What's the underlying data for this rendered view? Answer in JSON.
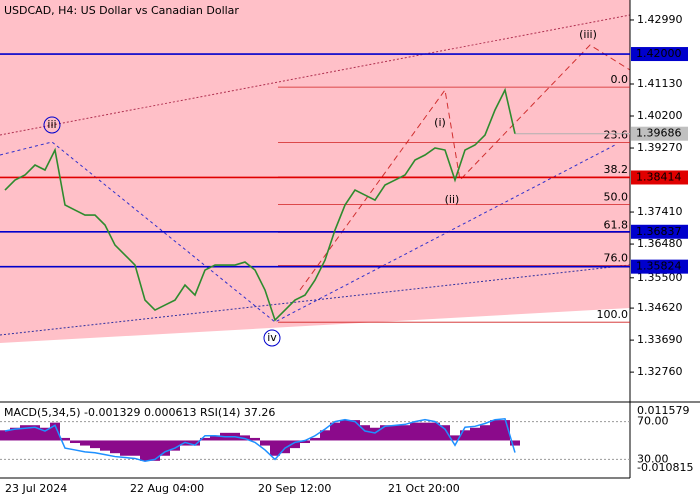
{
  "chart_data": {
    "type": "line",
    "title": "USDCAD, H4:  US Dollar vs Canadian Dollar",
    "x_labels": [
      "23 Jul 2024",
      "22 Aug 04:00",
      "20 Sep 12:00",
      "21 Oct 20:00"
    ],
    "ylim": [
      1.3195,
      1.4357
    ],
    "yticks": [
      {
        "value": 1.4299,
        "label": "1.42990"
      },
      {
        "value": 1.4113,
        "label": "1.41130"
      },
      {
        "value": 1.402,
        "label": "1.40200"
      },
      {
        "value": 1.3927,
        "label": "1.39270"
      },
      {
        "value": 1.3741,
        "label": "1.37410"
      },
      {
        "value": 1.3648,
        "label": "1.36480"
      },
      {
        "value": 1.355,
        "label": "1.35500"
      },
      {
        "value": 1.3462,
        "label": "1.34620"
      },
      {
        "value": 1.3369,
        "label": "1.33690"
      },
      {
        "value": 1.3276,
        "label": "1.32760"
      }
    ],
    "series": [
      {
        "name": "USDCAD",
        "color": "#2e8b2e",
        "values": [
          1.3805,
          1.3834,
          1.38486,
          1.38776,
          1.38631,
          1.39212,
          1.37614,
          1.37468,
          1.37323,
          1.37323,
          1.37033,
          1.36451,
          1.36161,
          1.3587,
          1.34853,
          1.34562,
          1.34708,
          1.34853,
          1.35289,
          1.34998,
          1.35725,
          1.3587,
          1.3587,
          1.3587,
          1.35957,
          1.35725,
          1.35144,
          1.34272,
          1.34562,
          1.34853,
          1.34998,
          1.35434,
          1.36015,
          1.36887,
          1.37614,
          1.3805,
          1.37904,
          1.37759,
          1.38195,
          1.3834,
          1.38486,
          1.38921,
          1.39067,
          1.3927,
          1.39212,
          1.3834,
          1.39212,
          1.39357,
          1.39648,
          1.40375,
          1.40956,
          1.39686
        ]
      }
    ],
    "current_price": {
      "value": 1.39686,
      "label": "1.39686"
    },
    "levels": [
      {
        "value": 1.42,
        "label": "1.42000",
        "color": "#0000cc"
      },
      {
        "value": 1.38414,
        "label": "1.38414",
        "color": "#e00000"
      },
      {
        "value": 1.36837,
        "label": "1.36837",
        "color": "#0000cc"
      },
      {
        "value": 1.35824,
        "label": "1.35824",
        "color": "#0000cc"
      }
    ],
    "fib_levels": [
      {
        "value": 1.4104,
        "label": "0.0"
      },
      {
        "value": 1.3943,
        "label": "23.6"
      },
      {
        "value": 1.3843,
        "label": "38.2"
      },
      {
        "value": 1.3763,
        "label": "50.0"
      },
      {
        "value": 1.3682,
        "label": "61.8"
      },
      {
        "value": 1.3586,
        "label": "76.0"
      },
      {
        "value": 1.3421,
        "label": "100.0"
      }
    ],
    "annotations": [
      {
        "text": "iii",
        "color": "#0000cc"
      },
      {
        "text": "iv",
        "color": "#0000cc"
      },
      {
        "text": "(i)",
        "color": "#c00000"
      },
      {
        "text": "(ii)",
        "color": "#c00000"
      },
      {
        "text": "(iii)",
        "color": "#c00000"
      }
    ],
    "indicator": {
      "title": "MACD(5,34,5) -0.001329 0.000613 RSI(14) 37.26",
      "macd_ylim": [
        -0.010815,
        0.011579
      ],
      "macd_ticks": [
        {
          "value": 0.011579,
          "label": "0.011579"
        },
        {
          "value": -0.010815,
          "label": "-0.010815"
        }
      ],
      "macd_color": "#8b0a8b",
      "macd_values": [
        0.004,
        0.005,
        0.006,
        0.006,
        0.005,
        0.007,
        0.001,
        -0.001,
        -0.002,
        -0.003,
        -0.004,
        -0.005,
        -0.006,
        -0.006,
        -0.008,
        -0.008,
        -0.006,
        -0.004,
        -0.002,
        -0.002,
        0.001,
        0.002,
        0.003,
        0.003,
        0.002,
        0.001,
        -0.002,
        -0.006,
        -0.005,
        -0.003,
        -0.001,
        0.001,
        0.004,
        0.007,
        0.008,
        0.008,
        0.006,
        0.005,
        0.006,
        0.006,
        0.006,
        0.007,
        0.007,
        0.007,
        0.006,
        0.002,
        0.004,
        0.005,
        0.006,
        0.008,
        0.008,
        -0.002
      ],
      "rsi_ylim": [
        20.9,
        81.2
      ],
      "rsi_ticks": [
        {
          "value": 70,
          "label": "70.00"
        },
        {
          "value": 30,
          "label": "30.00"
        }
      ],
      "rsi_color": "#1e90ff",
      "rsi_values": [
        60,
        62,
        63,
        64,
        60,
        66,
        42,
        40,
        38,
        37,
        35,
        33,
        32,
        31,
        28,
        30,
        38,
        42,
        48,
        45,
        55,
        55,
        54,
        54,
        52,
        48,
        40,
        30,
        42,
        48,
        50,
        55,
        62,
        70,
        72,
        70,
        60,
        58,
        65,
        66,
        67,
        70,
        72,
        70,
        62,
        45,
        64,
        65,
        68,
        72,
        73,
        37.26
      ]
    }
  }
}
